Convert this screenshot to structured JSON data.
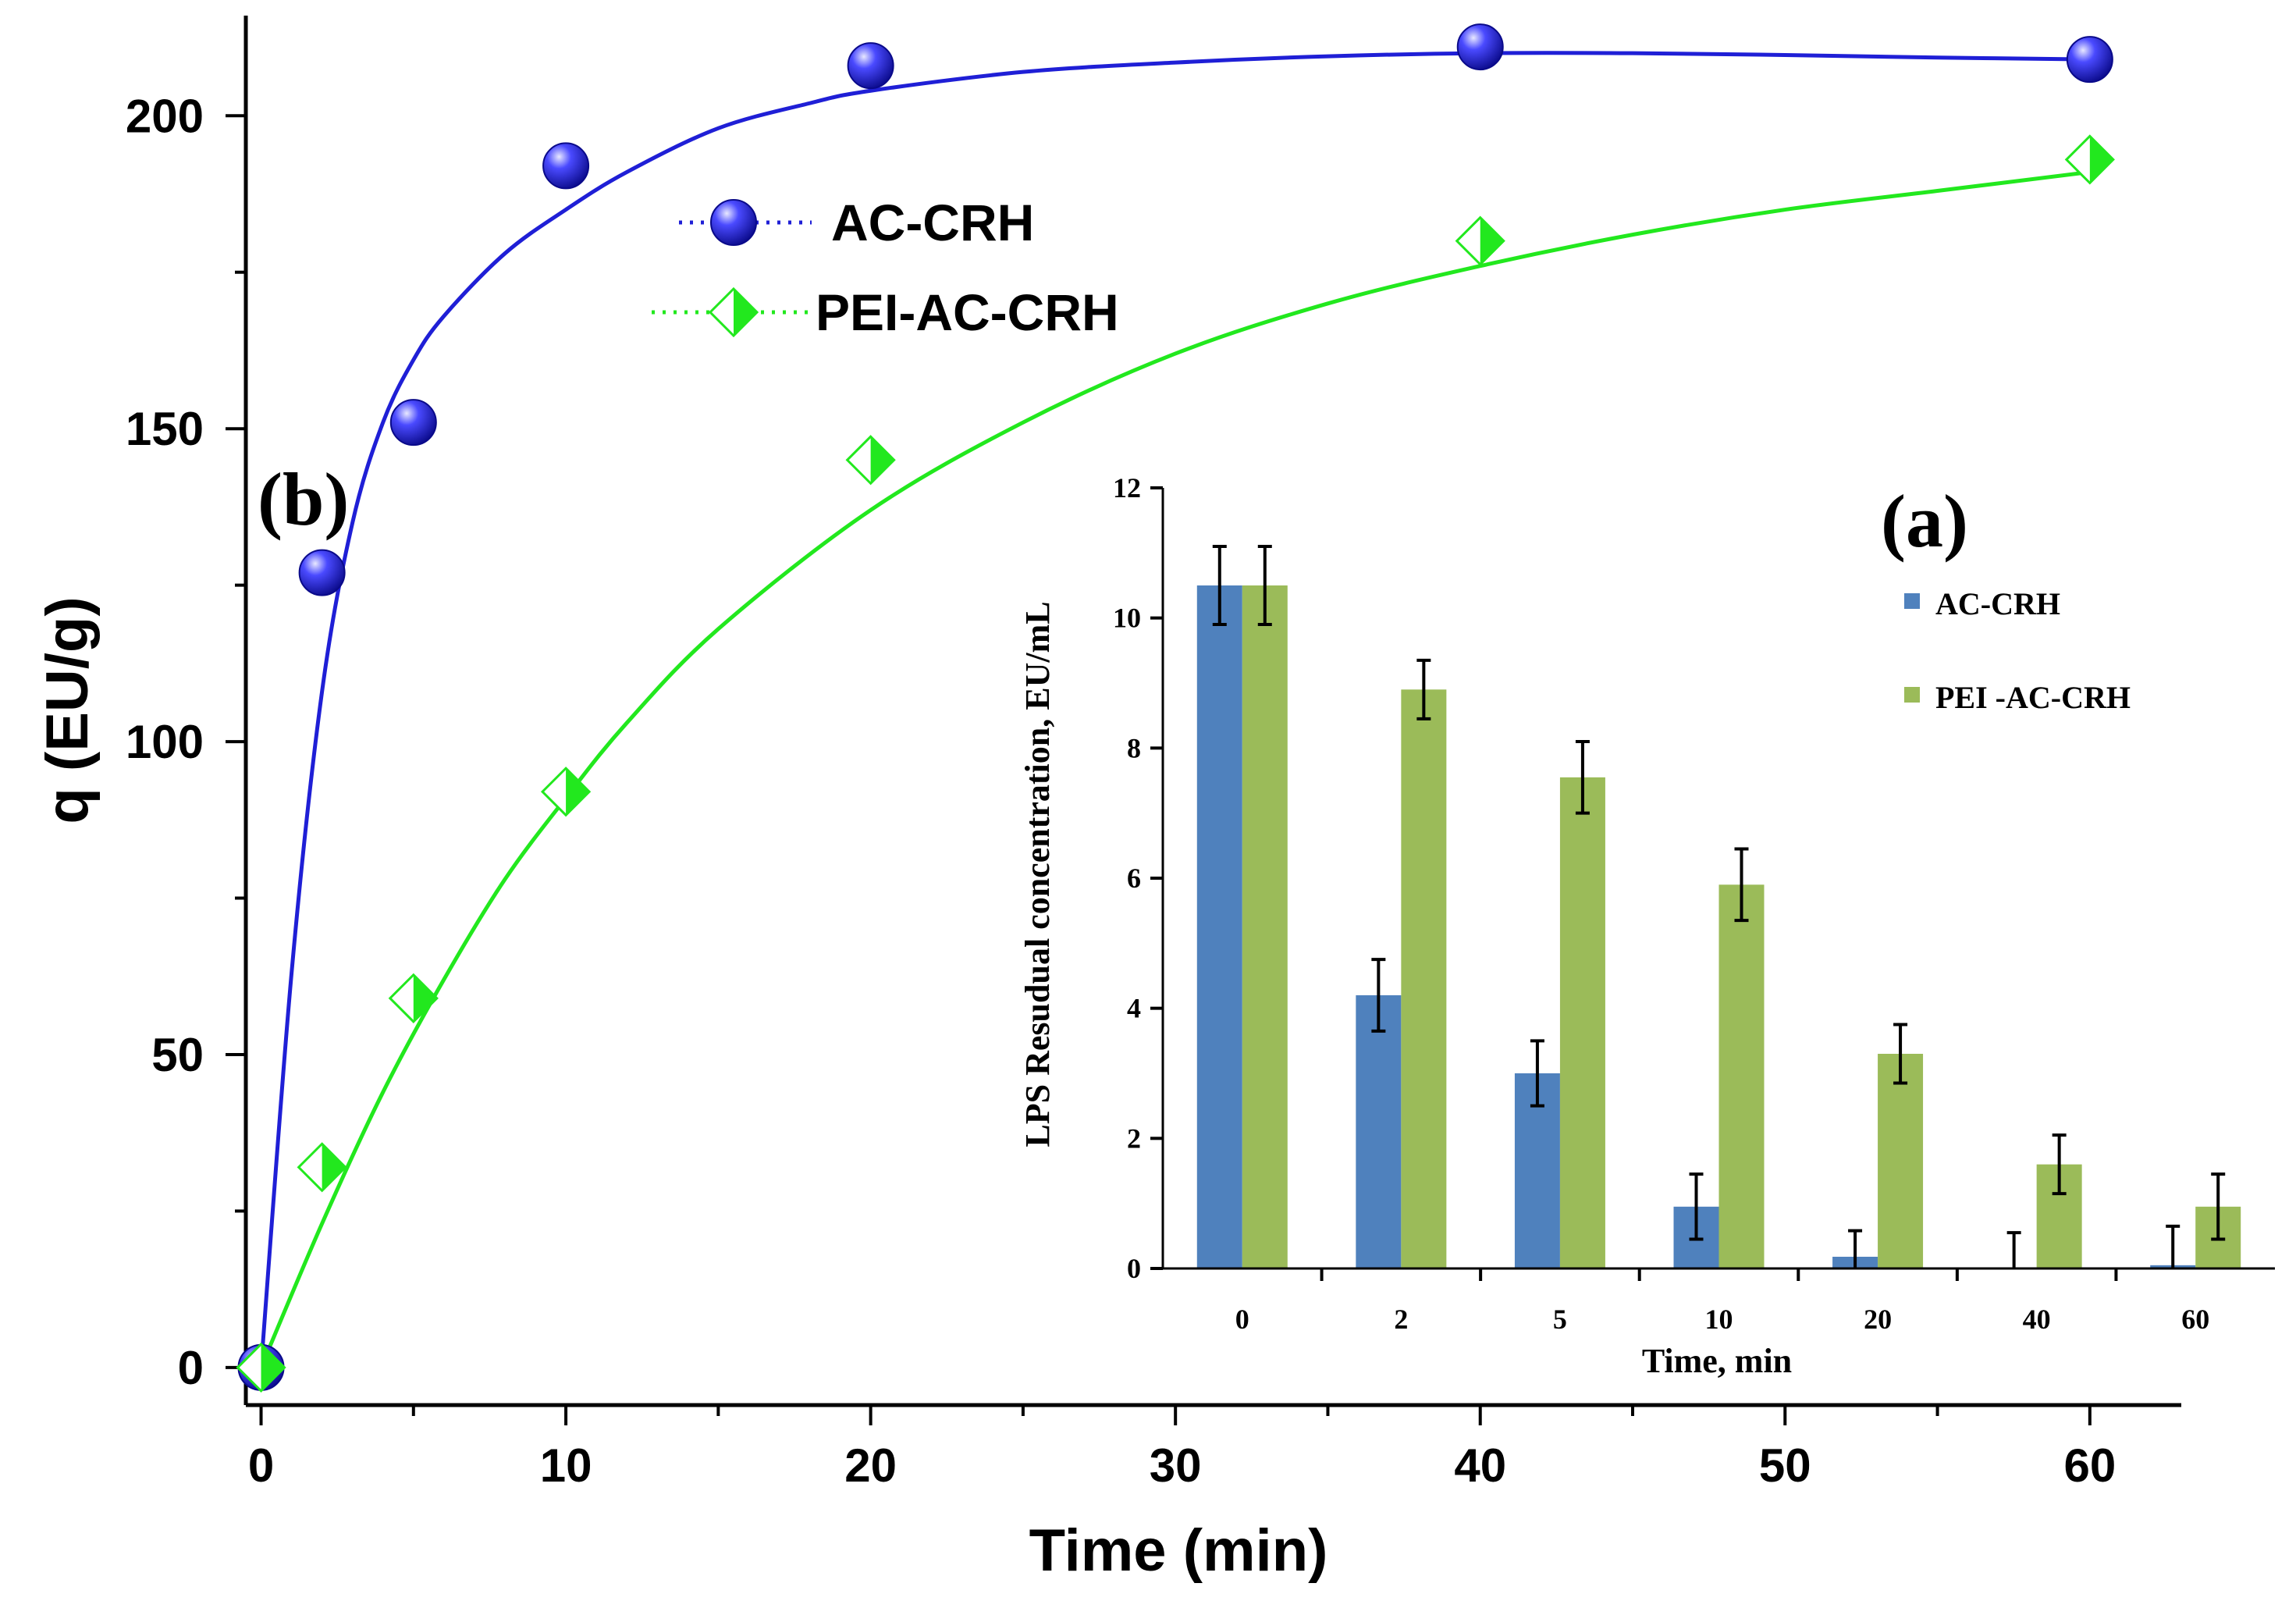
{
  "colors": {
    "ac_crh_main": "#1f1fd6",
    "pei_ac_crh_main": "#22e81e",
    "ac_crh_bar": "#4f81bd",
    "pei_ac_crh_bar": "#9bbb59"
  },
  "chart_data": [
    {
      "type": "scatter",
      "panel_label": "(b)",
      "xlabel": "Time (min)",
      "ylabel": "q (EU/g)",
      "xlim": [
        -0.5,
        63
      ],
      "ylim": [
        -6,
        216
      ],
      "xticks": [
        0,
        10,
        20,
        30,
        40,
        50,
        60
      ],
      "yticks": [
        0,
        50,
        100,
        150,
        200
      ],
      "series": [
        {
          "name": "AC-CRH",
          "marker": "sphere-icon",
          "x": [
            0,
            2,
            5,
            10,
            20,
            40,
            60
          ],
          "y": [
            0,
            127,
            151,
            192,
            208,
            211,
            209
          ],
          "fit_x": [
            0,
            1,
            2,
            3,
            4,
            5,
            6,
            8,
            10,
            12,
            15,
            18,
            20,
            25,
            30,
            35,
            40,
            45,
            50,
            55,
            60
          ],
          "fit_y": [
            0,
            63,
            108,
            135,
            151,
            161,
            168,
            178,
            185,
            191,
            198,
            202,
            204,
            207,
            208.5,
            209.5,
            210,
            210,
            209.7,
            209.3,
            209
          ]
        },
        {
          "name": "PEI-AC-CRH",
          "marker": "half-diamond-icon",
          "x": [
            0,
            2,
            5,
            10,
            20,
            40,
            60
          ],
          "y": [
            0,
            32,
            59,
            92,
            145,
            180,
            193
          ],
          "fit_x": [
            0,
            2,
            4,
            6,
            8,
            10,
            12,
            15,
            20,
            25,
            30,
            35,
            40,
            45,
            50,
            55,
            60
          ],
          "fit_y": [
            0,
            23,
            44,
            62,
            78,
            91,
            103,
            118,
            137,
            151,
            162,
            170,
            176,
            181,
            185,
            188,
            191
          ]
        }
      ]
    },
    {
      "type": "bar",
      "panel_label": "(a)",
      "xlabel": "Time, min",
      "ylabel": "LPS Resudual concentration, EU/mL",
      "ylim": [
        0,
        12
      ],
      "yticks": [
        0,
        2,
        4,
        6,
        8,
        10,
        12
      ],
      "categories": [
        "0",
        "2",
        "5",
        "10",
        "20",
        "40",
        "60"
      ],
      "series": [
        {
          "name": "AC-CRH",
          "values": [
            10.5,
            4.2,
            3.0,
            0.95,
            0.18,
            0.0,
            0.05
          ],
          "errors": [
            0.6,
            0.55,
            0.5,
            0.5,
            0.4,
            0.55,
            0.6
          ]
        },
        {
          "name": "PEI -AC-CRH",
          "values": [
            10.5,
            8.9,
            7.55,
            5.9,
            3.3,
            1.6,
            0.95
          ],
          "errors": [
            0.6,
            0.45,
            0.55,
            0.55,
            0.45,
            0.45,
            0.5
          ]
        }
      ]
    }
  ]
}
